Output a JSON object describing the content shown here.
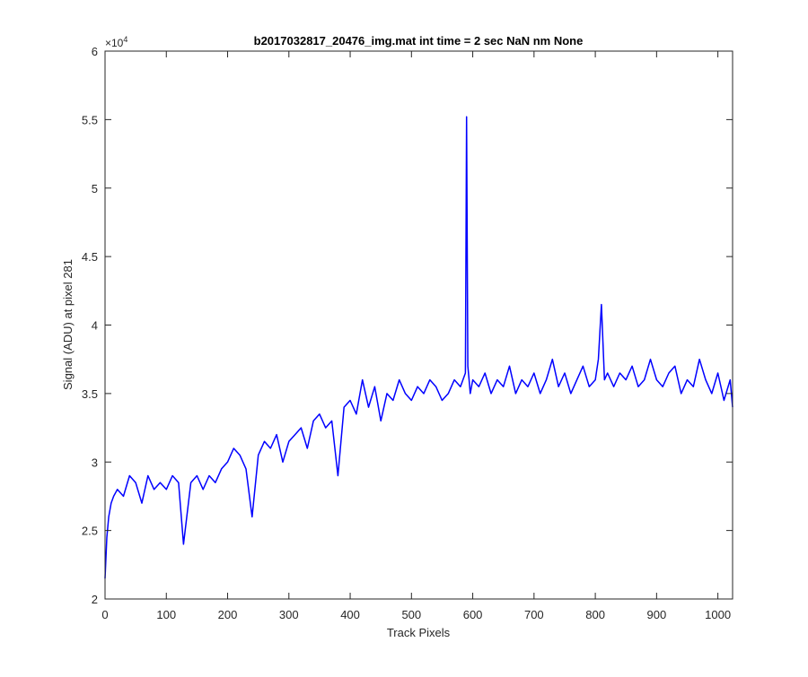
{
  "chart_data": {
    "type": "line",
    "title": "b2017032817_20476_img.mat int time = 2 sec  NaN nm None",
    "xlabel": "Track Pixels",
    "ylabel": "Signal (ADU) at pixel 281",
    "xlim": [
      0,
      1024
    ],
    "ylim": [
      20000,
      60000
    ],
    "xticks": [
      0,
      100,
      200,
      300,
      400,
      500,
      600,
      700,
      800,
      900,
      1000
    ],
    "yticks": [
      20000,
      25000,
      30000,
      35000,
      40000,
      45000,
      50000,
      55000,
      60000
    ],
    "ytick_labels": [
      "2",
      "2.5",
      "3",
      "3.5",
      "4",
      "4.5",
      "5",
      "5.5",
      "6"
    ],
    "y_multiplier_base": "×10",
    "y_multiplier_exp": "4",
    "grid": false,
    "series": [
      {
        "color": "#0000ff",
        "x": [
          0,
          3,
          6,
          10,
          14,
          20,
          30,
          40,
          50,
          60,
          70,
          80,
          90,
          100,
          110,
          120,
          128,
          140,
          150,
          160,
          170,
          180,
          190,
          200,
          210,
          220,
          230,
          240,
          250,
          260,
          270,
          280,
          290,
          300,
          310,
          320,
          330,
          340,
          350,
          360,
          370,
          380,
          390,
          400,
          410,
          420,
          430,
          440,
          450,
          460,
          470,
          480,
          490,
          500,
          510,
          520,
          530,
          540,
          550,
          560,
          570,
          580,
          588,
          590,
          592,
          594,
          596,
          600,
          610,
          620,
          630,
          640,
          650,
          660,
          670,
          680,
          690,
          700,
          710,
          720,
          730,
          740,
          750,
          760,
          770,
          780,
          790,
          800,
          805,
          810,
          815,
          820,
          830,
          840,
          850,
          860,
          870,
          880,
          890,
          900,
          910,
          920,
          930,
          940,
          950,
          960,
          970,
          980,
          990,
          1000,
          1010,
          1020,
          1024
        ],
        "y": [
          21500,
          24500,
          26000,
          27000,
          27500,
          28000,
          27500,
          29000,
          28500,
          27000,
          29000,
          28000,
          28500,
          28000,
          29000,
          28500,
          24000,
          28500,
          29000,
          28000,
          29000,
          28500,
          29500,
          30000,
          31000,
          30500,
          29500,
          26000,
          30500,
          31500,
          31000,
          32000,
          30000,
          31500,
          32000,
          32500,
          31000,
          33000,
          33500,
          32500,
          33000,
          29000,
          34000,
          34500,
          33500,
          36000,
          34000,
          35500,
          33000,
          35000,
          34500,
          36000,
          35000,
          34500,
          35500,
          35000,
          36000,
          35500,
          34500,
          35000,
          36000,
          35500,
          36500,
          55200,
          37000,
          36000,
          35000,
          36000,
          35500,
          36500,
          35000,
          36000,
          35500,
          37000,
          35000,
          36000,
          35500,
          36500,
          35000,
          36000,
          37500,
          35500,
          36500,
          35000,
          36000,
          37000,
          35500,
          36000,
          37500,
          41500,
          36000,
          36500,
          35500,
          36500,
          36000,
          37000,
          35500,
          36000,
          37500,
          36000,
          35500,
          36500,
          37000,
          35000,
          36000,
          35500,
          37500,
          36000,
          35000,
          36500,
          34500,
          36000,
          34000
        ]
      }
    ]
  }
}
